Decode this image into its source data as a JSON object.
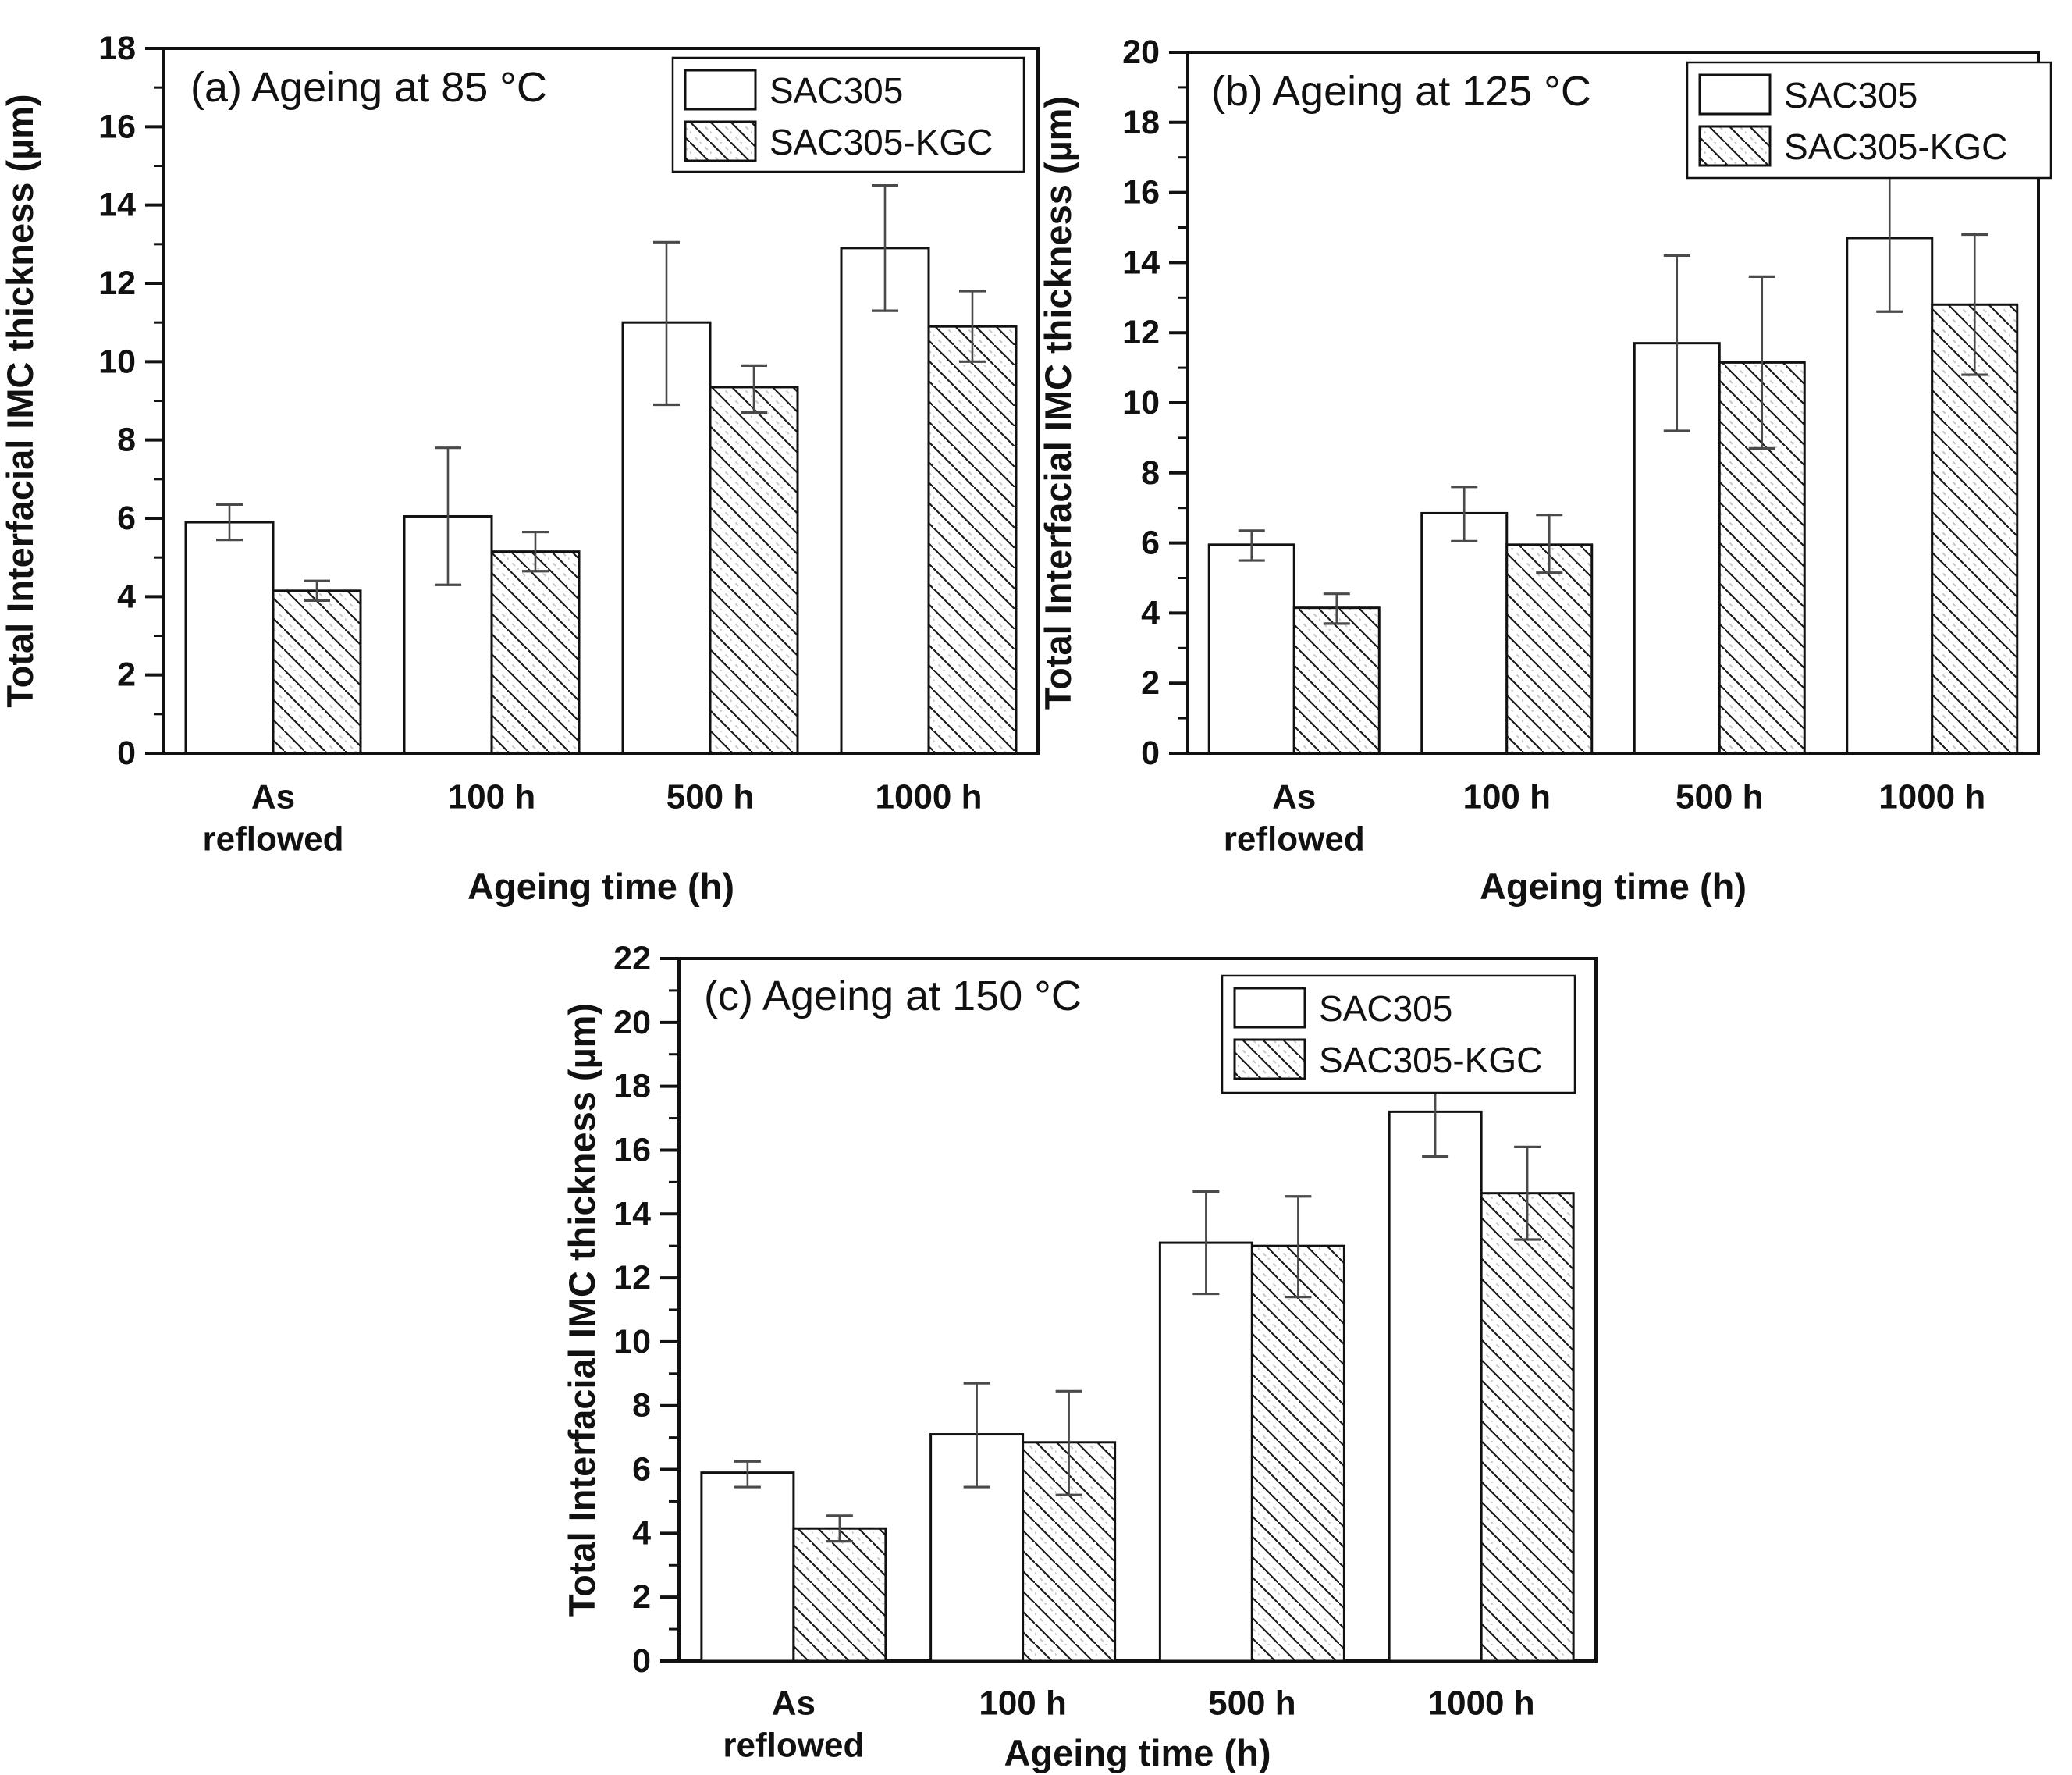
{
  "figure": {
    "background": "#ffffff",
    "ink_color": "#111111",
    "error_bar_color": "#4a4a4a",
    "hatch_light_color": "#c8c8c8"
  },
  "chart_data": [
    {
      "id": "a",
      "type": "bar",
      "title": "(a) Ageing at 85 °C",
      "xlabel": "Ageing time (h)",
      "ylabel": "Total Interfacial IMC thickness (µm)",
      "ylim": [
        0,
        18
      ],
      "ytick_major": 2,
      "ytick_minor": 1,
      "grid": false,
      "legend_position": "top-right-inside",
      "categories": [
        [
          "As",
          "reflowed"
        ],
        [
          "100 h"
        ],
        [
          "500 h"
        ],
        [
          "1000 h"
        ]
      ],
      "series": [
        {
          "name": "SAC305",
          "style": "plain",
          "values": [
            5.9,
            6.05,
            11.0,
            12.9
          ],
          "err_lo": [
            0.45,
            1.75,
            2.1,
            1.6
          ],
          "err_hi": [
            0.45,
            1.75,
            2.05,
            1.6
          ]
        },
        {
          "name": "SAC305-KGC",
          "style": "hatched",
          "values": [
            4.15,
            5.15,
            9.35,
            10.9
          ],
          "err_lo": [
            0.25,
            0.5,
            0.65,
            0.9
          ],
          "err_hi": [
            0.25,
            0.5,
            0.55,
            0.9
          ]
        }
      ]
    },
    {
      "id": "b",
      "type": "bar",
      "title": "(b) Ageing at 125 °C",
      "xlabel": "Ageing time (h)",
      "ylabel": "Total Interfacial IMC thickness (µm)",
      "ylim": [
        0,
        20
      ],
      "ytick_major": 2,
      "ytick_minor": 1,
      "grid": false,
      "legend_position": "top-right-inside",
      "categories": [
        [
          "As",
          "reflowed"
        ],
        [
          "100 h"
        ],
        [
          "500 h"
        ],
        [
          "1000 h"
        ]
      ],
      "series": [
        {
          "name": "SAC305",
          "style": "plain",
          "values": [
            5.95,
            6.85,
            11.7,
            14.7
          ],
          "err_lo": [
            0.45,
            0.8,
            2.5,
            2.1
          ],
          "err_hi": [
            0.4,
            0.75,
            2.5,
            2.0
          ]
        },
        {
          "name": "SAC305-KGC",
          "style": "hatched",
          "values": [
            4.15,
            5.95,
            11.15,
            12.8
          ],
          "err_lo": [
            0.45,
            0.8,
            2.45,
            2.0
          ],
          "err_hi": [
            0.4,
            0.85,
            2.45,
            2.0
          ]
        }
      ]
    },
    {
      "id": "c",
      "type": "bar",
      "title": "(c) Ageing at 150 °C",
      "xlabel": "Ageing time (h)",
      "ylabel": "Total Interfacial IMC thickness (µm)",
      "ylim": [
        0,
        22
      ],
      "ytick_major": 2,
      "ytick_minor": 1,
      "grid": false,
      "legend_position": "top-right-inside",
      "categories": [
        [
          "As",
          "reflowed"
        ],
        [
          "100 h"
        ],
        [
          "500 h"
        ],
        [
          "1000 h"
        ]
      ],
      "series": [
        {
          "name": "SAC305",
          "style": "plain",
          "values": [
            5.9,
            7.1,
            13.1,
            17.2
          ],
          "err_lo": [
            0.45,
            1.65,
            1.6,
            1.4
          ],
          "err_hi": [
            0.35,
            1.6,
            1.6,
            1.45
          ]
        },
        {
          "name": "SAC305-KGC",
          "style": "hatched",
          "values": [
            4.15,
            6.85,
            13.0,
            14.65
          ],
          "err_lo": [
            0.4,
            1.65,
            1.6,
            1.45
          ],
          "err_hi": [
            0.4,
            1.6,
            1.55,
            1.45
          ]
        }
      ]
    }
  ]
}
